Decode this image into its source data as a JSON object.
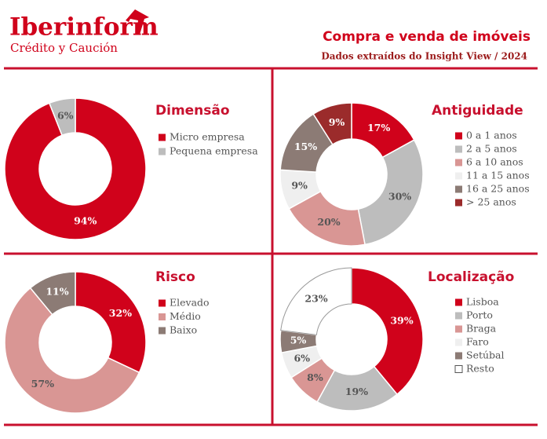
{
  "header": {
    "brand": "Iberinform",
    "tagline": "Crédito y Caución",
    "title": "Compra e venda de imóveis",
    "subtitle": "Dados extraídos do Insight View / 2024"
  },
  "chart_data": [
    {
      "type": "donut",
      "title": "Dimensão",
      "categories": [
        "Micro empresa",
        "Pequena empresa"
      ],
      "values": [
        94,
        6
      ],
      "value_labels": [
        "94%",
        "6%"
      ],
      "colors": [
        "#d0021b",
        "#bdbdbd"
      ]
    },
    {
      "type": "donut",
      "title": "Antiguidade",
      "categories": [
        "0 a 1 anos",
        "2 a 5 anos",
        "6 a 10 anos",
        "11 a 15 anos",
        "16 a 25 anos",
        "> 25 anos"
      ],
      "values": [
        17,
        30,
        20,
        9,
        15,
        9
      ],
      "value_labels": [
        "17%",
        "30%",
        "20%",
        "9%",
        "15%",
        "9%"
      ],
      "colors": [
        "#d0021b",
        "#bdbdbd",
        "#d99694",
        "#efefef",
        "#8c7b75",
        "#9b2b2b"
      ]
    },
    {
      "type": "donut",
      "title": "Risco",
      "categories": [
        "Elevado",
        "Médio",
        "Baixo"
      ],
      "values": [
        32,
        57,
        11
      ],
      "value_labels": [
        "32%",
        "57%",
        "11%"
      ],
      "colors": [
        "#d0021b",
        "#d99694",
        "#8c7b75"
      ]
    },
    {
      "type": "donut",
      "title": "Localização",
      "categories": [
        "Lisboa",
        "Porto",
        "Braga",
        "Faro",
        "Setúbal",
        "Resto"
      ],
      "values": [
        39,
        19,
        8,
        6,
        5,
        23
      ],
      "value_labels": [
        "39%",
        "19%",
        "8%",
        "6%",
        "5%",
        "23%"
      ],
      "colors": [
        "#d0021b",
        "#bdbdbd",
        "#d99694",
        "#efefef",
        "#8c7b75",
        "#ffffff"
      ]
    }
  ]
}
